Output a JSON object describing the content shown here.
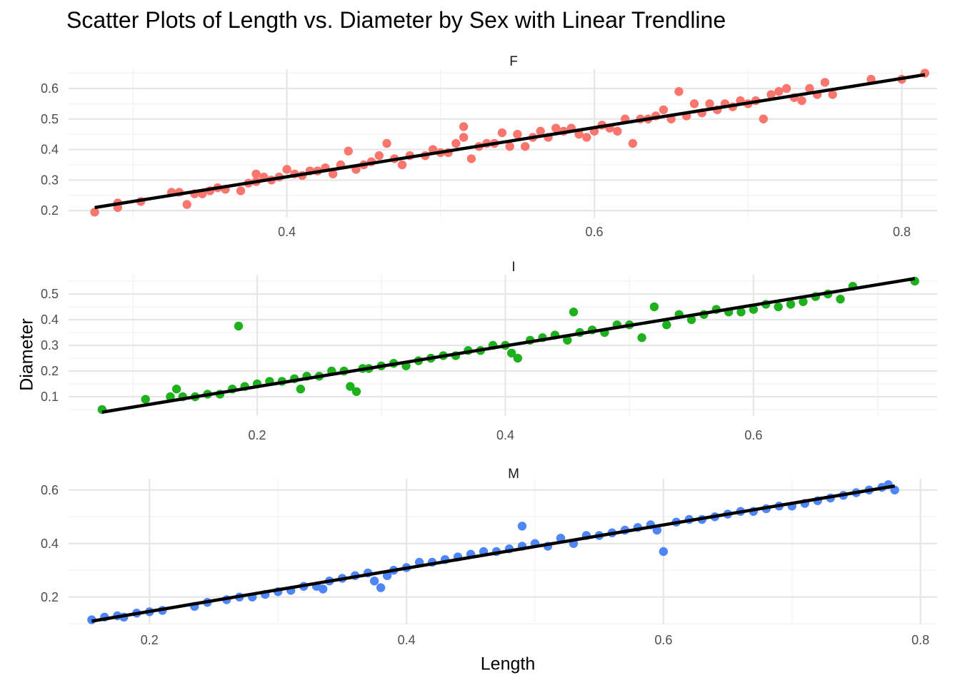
{
  "chart_data": {
    "type": "scatter",
    "title": "Scatter Plots of Length vs. Diameter by Sex with Linear Trendline",
    "xlabel": "Length",
    "ylabel": "Diameter",
    "trendline": "linear",
    "trendline_color": "#000000",
    "grid": true,
    "legend": "none",
    "facets": [
      {
        "label": "F",
        "color": "#F8766D",
        "xlim": [
          0.258,
          0.823
        ],
        "ylim": [
          0.177,
          0.663
        ],
        "x_ticks": [
          0.4,
          0.6,
          0.8
        ],
        "x_tick_labels": [
          "0.4",
          "0.6",
          "0.8"
        ],
        "y_ticks": [
          0.2,
          0.3,
          0.4,
          0.5,
          0.6
        ],
        "y_tick_labels": [
          "0.2",
          "0.3",
          "0.4",
          "0.5",
          "0.6"
        ],
        "trend": {
          "x": [
            0.275,
            0.815
          ],
          "y": [
            0.21,
            0.645
          ]
        },
        "points": [
          [
            0.275,
            0.195
          ],
          [
            0.29,
            0.21
          ],
          [
            0.29,
            0.225
          ],
          [
            0.305,
            0.23
          ],
          [
            0.325,
            0.26
          ],
          [
            0.33,
            0.26
          ],
          [
            0.335,
            0.22
          ],
          [
            0.34,
            0.255
          ],
          [
            0.345,
            0.255
          ],
          [
            0.35,
            0.265
          ],
          [
            0.355,
            0.275
          ],
          [
            0.36,
            0.27
          ],
          [
            0.37,
            0.265
          ],
          [
            0.375,
            0.29
          ],
          [
            0.38,
            0.295
          ],
          [
            0.38,
            0.32
          ],
          [
            0.385,
            0.31
          ],
          [
            0.39,
            0.3
          ],
          [
            0.395,
            0.31
          ],
          [
            0.4,
            0.335
          ],
          [
            0.405,
            0.32
          ],
          [
            0.41,
            0.315
          ],
          [
            0.415,
            0.33
          ],
          [
            0.42,
            0.33
          ],
          [
            0.425,
            0.34
          ],
          [
            0.43,
            0.32
          ],
          [
            0.435,
            0.35
          ],
          [
            0.44,
            0.395
          ],
          [
            0.445,
            0.335
          ],
          [
            0.45,
            0.35
          ],
          [
            0.455,
            0.36
          ],
          [
            0.46,
            0.38
          ],
          [
            0.465,
            0.42
          ],
          [
            0.47,
            0.37
          ],
          [
            0.475,
            0.35
          ],
          [
            0.48,
            0.38
          ],
          [
            0.49,
            0.38
          ],
          [
            0.495,
            0.4
          ],
          [
            0.5,
            0.39
          ],
          [
            0.505,
            0.39
          ],
          [
            0.51,
            0.42
          ],
          [
            0.515,
            0.44
          ],
          [
            0.515,
            0.475
          ],
          [
            0.52,
            0.37
          ],
          [
            0.525,
            0.41
          ],
          [
            0.53,
            0.42
          ],
          [
            0.535,
            0.42
          ],
          [
            0.54,
            0.455
          ],
          [
            0.545,
            0.41
          ],
          [
            0.55,
            0.45
          ],
          [
            0.555,
            0.41
          ],
          [
            0.56,
            0.44
          ],
          [
            0.565,
            0.46
          ],
          [
            0.57,
            0.44
          ],
          [
            0.575,
            0.47
          ],
          [
            0.58,
            0.46
          ],
          [
            0.585,
            0.47
          ],
          [
            0.59,
            0.45
          ],
          [
            0.595,
            0.44
          ],
          [
            0.6,
            0.46
          ],
          [
            0.605,
            0.48
          ],
          [
            0.61,
            0.47
          ],
          [
            0.615,
            0.46
          ],
          [
            0.62,
            0.5
          ],
          [
            0.625,
            0.42
          ],
          [
            0.63,
            0.5
          ],
          [
            0.635,
            0.5
          ],
          [
            0.64,
            0.51
          ],
          [
            0.645,
            0.53
          ],
          [
            0.65,
            0.5
          ],
          [
            0.655,
            0.59
          ],
          [
            0.66,
            0.51
          ],
          [
            0.665,
            0.55
          ],
          [
            0.67,
            0.52
          ],
          [
            0.675,
            0.55
          ],
          [
            0.68,
            0.53
          ],
          [
            0.685,
            0.55
          ],
          [
            0.69,
            0.54
          ],
          [
            0.695,
            0.56
          ],
          [
            0.7,
            0.55
          ],
          [
            0.705,
            0.56
          ],
          [
            0.71,
            0.5
          ],
          [
            0.715,
            0.58
          ],
          [
            0.72,
            0.59
          ],
          [
            0.725,
            0.6
          ],
          [
            0.73,
            0.57
          ],
          [
            0.735,
            0.56
          ],
          [
            0.74,
            0.6
          ],
          [
            0.745,
            0.58
          ],
          [
            0.75,
            0.62
          ],
          [
            0.755,
            0.58
          ],
          [
            0.78,
            0.63
          ],
          [
            0.8,
            0.63
          ],
          [
            0.815,
            0.65
          ]
        ]
      },
      {
        "label": "I",
        "color": "#1EB11E",
        "xlim": [
          0.048,
          0.748
        ],
        "ylim": [
          0.025,
          0.575
        ],
        "x_ticks": [
          0.2,
          0.4,
          0.6
        ],
        "x_tick_labels": [
          "0.2",
          "0.4",
          "0.6"
        ],
        "y_ticks": [
          0.1,
          0.2,
          0.3,
          0.4,
          0.5
        ],
        "y_tick_labels": [
          "0.1",
          "0.2",
          "0.3",
          "0.4",
          "0.5"
        ],
        "trend": {
          "x": [
            0.075,
            0.73
          ],
          "y": [
            0.04,
            0.56
          ]
        },
        "points": [
          [
            0.075,
            0.05
          ],
          [
            0.11,
            0.09
          ],
          [
            0.13,
            0.1
          ],
          [
            0.135,
            0.13
          ],
          [
            0.14,
            0.1
          ],
          [
            0.15,
            0.1
          ],
          [
            0.16,
            0.11
          ],
          [
            0.17,
            0.11
          ],
          [
            0.18,
            0.13
          ],
          [
            0.185,
            0.375
          ],
          [
            0.19,
            0.14
          ],
          [
            0.2,
            0.15
          ],
          [
            0.21,
            0.16
          ],
          [
            0.22,
            0.16
          ],
          [
            0.23,
            0.17
          ],
          [
            0.235,
            0.13
          ],
          [
            0.24,
            0.18
          ],
          [
            0.25,
            0.18
          ],
          [
            0.26,
            0.2
          ],
          [
            0.27,
            0.2
          ],
          [
            0.275,
            0.14
          ],
          [
            0.28,
            0.12
          ],
          [
            0.285,
            0.21
          ],
          [
            0.29,
            0.21
          ],
          [
            0.3,
            0.22
          ],
          [
            0.31,
            0.23
          ],
          [
            0.32,
            0.22
          ],
          [
            0.33,
            0.24
          ],
          [
            0.34,
            0.25
          ],
          [
            0.35,
            0.26
          ],
          [
            0.36,
            0.26
          ],
          [
            0.37,
            0.28
          ],
          [
            0.38,
            0.28
          ],
          [
            0.39,
            0.3
          ],
          [
            0.4,
            0.3
          ],
          [
            0.405,
            0.27
          ],
          [
            0.41,
            0.25
          ],
          [
            0.42,
            0.32
          ],
          [
            0.43,
            0.33
          ],
          [
            0.44,
            0.34
          ],
          [
            0.45,
            0.32
          ],
          [
            0.455,
            0.43
          ],
          [
            0.46,
            0.35
          ],
          [
            0.47,
            0.36
          ],
          [
            0.48,
            0.35
          ],
          [
            0.49,
            0.38
          ],
          [
            0.5,
            0.38
          ],
          [
            0.51,
            0.33
          ],
          [
            0.52,
            0.45
          ],
          [
            0.53,
            0.38
          ],
          [
            0.54,
            0.42
          ],
          [
            0.55,
            0.4
          ],
          [
            0.56,
            0.42
          ],
          [
            0.57,
            0.44
          ],
          [
            0.58,
            0.43
          ],
          [
            0.59,
            0.43
          ],
          [
            0.6,
            0.44
          ],
          [
            0.61,
            0.46
          ],
          [
            0.62,
            0.45
          ],
          [
            0.63,
            0.46
          ],
          [
            0.64,
            0.47
          ],
          [
            0.65,
            0.49
          ],
          [
            0.66,
            0.5
          ],
          [
            0.67,
            0.48
          ],
          [
            0.68,
            0.53
          ],
          [
            0.73,
            0.55
          ]
        ]
      },
      {
        "label": "M",
        "color": "#4F86F7",
        "xlim": [
          0.137,
          0.813
        ],
        "ylim": [
          0.098,
          0.642
        ],
        "x_ticks": [
          0.2,
          0.4,
          0.6,
          0.8
        ],
        "x_tick_labels": [
          "0.2",
          "0.4",
          "0.6",
          "0.8"
        ],
        "y_ticks": [
          0.2,
          0.4,
          0.6
        ],
        "y_tick_labels": [
          "0.2",
          "0.4",
          "0.6"
        ],
        "trend": {
          "x": [
            0.155,
            0.78
          ],
          "y": [
            0.11,
            0.615
          ]
        },
        "points": [
          [
            0.155,
            0.115
          ],
          [
            0.165,
            0.125
          ],
          [
            0.175,
            0.13
          ],
          [
            0.18,
            0.125
          ],
          [
            0.19,
            0.14
          ],
          [
            0.2,
            0.145
          ],
          [
            0.21,
            0.15
          ],
          [
            0.235,
            0.165
          ],
          [
            0.245,
            0.18
          ],
          [
            0.26,
            0.19
          ],
          [
            0.27,
            0.2
          ],
          [
            0.28,
            0.2
          ],
          [
            0.29,
            0.21
          ],
          [
            0.3,
            0.22
          ],
          [
            0.31,
            0.225
          ],
          [
            0.32,
            0.24
          ],
          [
            0.33,
            0.24
          ],
          [
            0.335,
            0.23
          ],
          [
            0.34,
            0.26
          ],
          [
            0.35,
            0.27
          ],
          [
            0.36,
            0.28
          ],
          [
            0.37,
            0.29
          ],
          [
            0.375,
            0.26
          ],
          [
            0.38,
            0.235
          ],
          [
            0.385,
            0.28
          ],
          [
            0.39,
            0.3
          ],
          [
            0.4,
            0.31
          ],
          [
            0.41,
            0.33
          ],
          [
            0.42,
            0.33
          ],
          [
            0.43,
            0.34
          ],
          [
            0.44,
            0.35
          ],
          [
            0.45,
            0.36
          ],
          [
            0.46,
            0.37
          ],
          [
            0.47,
            0.37
          ],
          [
            0.48,
            0.38
          ],
          [
            0.49,
            0.39
          ],
          [
            0.49,
            0.465
          ],
          [
            0.5,
            0.4
          ],
          [
            0.51,
            0.39
          ],
          [
            0.52,
            0.42
          ],
          [
            0.53,
            0.4
          ],
          [
            0.54,
            0.43
          ],
          [
            0.55,
            0.43
          ],
          [
            0.56,
            0.44
          ],
          [
            0.57,
            0.45
          ],
          [
            0.58,
            0.46
          ],
          [
            0.59,
            0.47
          ],
          [
            0.595,
            0.45
          ],
          [
            0.6,
            0.37
          ],
          [
            0.61,
            0.48
          ],
          [
            0.62,
            0.49
          ],
          [
            0.63,
            0.49
          ],
          [
            0.64,
            0.5
          ],
          [
            0.65,
            0.51
          ],
          [
            0.66,
            0.52
          ],
          [
            0.67,
            0.52
          ],
          [
            0.68,
            0.53
          ],
          [
            0.69,
            0.54
          ],
          [
            0.7,
            0.54
          ],
          [
            0.71,
            0.55
          ],
          [
            0.72,
            0.56
          ],
          [
            0.73,
            0.57
          ],
          [
            0.74,
            0.58
          ],
          [
            0.75,
            0.59
          ],
          [
            0.76,
            0.6
          ],
          [
            0.77,
            0.61
          ],
          [
            0.775,
            0.62
          ],
          [
            0.78,
            0.6
          ]
        ]
      }
    ]
  }
}
